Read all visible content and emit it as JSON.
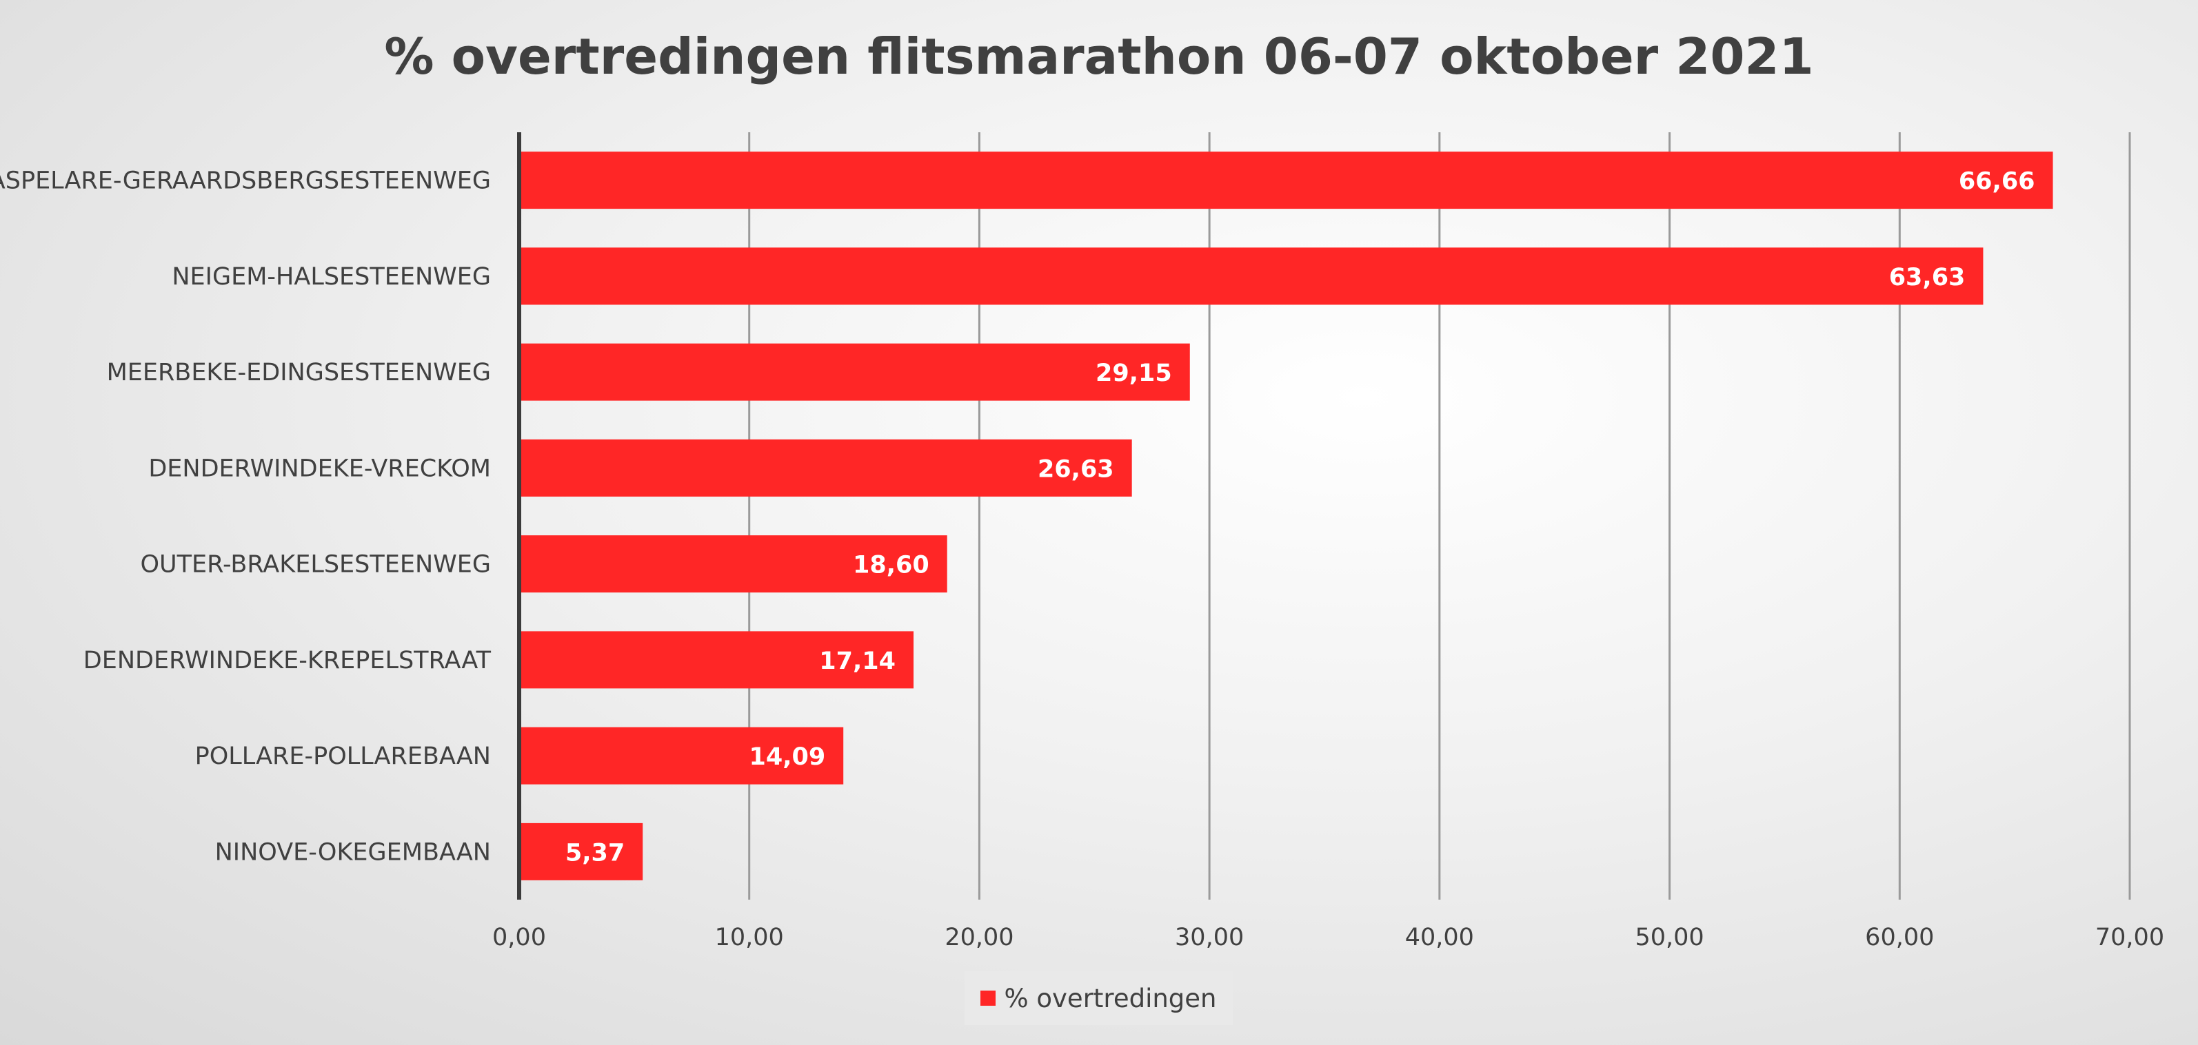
{
  "colors": {
    "bar": "#ff2626",
    "axis": "#3b3b3b",
    "grid": "#9a9a9a"
  },
  "chart_data": {
    "type": "bar",
    "orientation": "horizontal",
    "title": "% overtredingen flitsmarathon 06-07 oktober 2021",
    "categories": [
      "ASPELARE-GERAARDSBERGSESTEENWEG",
      "NEIGEM-HALSESTEENWEG",
      "MEERBEKE-EDINGSESTEENWEG",
      "DENDERWINDEKE-VRECKOM",
      "OUTER-BRAKELSESTEENWEG",
      "DENDERWINDEKE-KREPELSTRAAT",
      "POLLARE-POLLAREBAAN",
      "NINOVE-OKEGEMBAAN"
    ],
    "series": [
      {
        "name": "% overtredingen",
        "values": [
          66.66,
          63.63,
          29.15,
          26.63,
          18.6,
          17.14,
          14.09,
          5.37
        ],
        "value_labels": [
          "66,66",
          "63,63",
          "29,15",
          "26,63",
          "18,60",
          "17,14",
          "14,09",
          "5,37"
        ]
      }
    ],
    "xlim": [
      0,
      70
    ],
    "x_ticks": [
      0,
      10,
      20,
      30,
      40,
      50,
      60,
      70
    ],
    "x_tick_labels": [
      "0,00",
      "10,00",
      "20,00",
      "30,00",
      "40,00",
      "50,00",
      "60,00",
      "70,00"
    ],
    "xlabel": "",
    "ylabel": "",
    "grid": true,
    "legend": {
      "position": "bottom",
      "entries": [
        "% overtredingen"
      ]
    }
  }
}
